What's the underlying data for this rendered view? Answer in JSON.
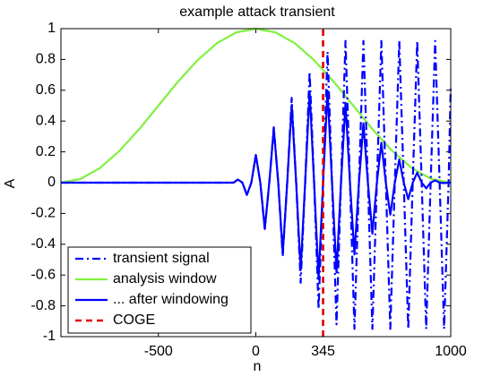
{
  "chart_data": {
    "type": "line",
    "title": "example attack transient",
    "x_label": "n",
    "y_label": "A",
    "xlim": [
      -1000,
      1000
    ],
    "ylim": [
      -1,
      1
    ],
    "xticks": [
      -500,
      0,
      345,
      1000
    ],
    "yticks": [
      -1,
      -0.8,
      -0.6,
      -0.4,
      -0.2,
      0,
      0.2,
      0.4,
      0.6,
      0.8,
      1
    ],
    "legend": "lower left",
    "series": [
      {
        "name": "transient signal",
        "color": "#0000ff",
        "linestyle": "dashdot",
        "x": [
          -1000,
          -115,
          -92,
          -69,
          -46,
          -23,
          0,
          23,
          46,
          69,
          92,
          115,
          138,
          161,
          184,
          207,
          230,
          253,
          276,
          299,
          322,
          345,
          368,
          391,
          414,
          437,
          460,
          483,
          506,
          529,
          552,
          575,
          598,
          621,
          644,
          667,
          690,
          713,
          736,
          759,
          782,
          805,
          828,
          851,
          874,
          897,
          920,
          943,
          966,
          989,
          1000
        ],
        "values": [
          0,
          0,
          0.02,
          0,
          -0.08,
          0,
          0.18,
          0,
          -0.3,
          0,
          0.36,
          0,
          -0.48,
          0,
          0.55,
          0,
          -0.65,
          0,
          0.72,
          0,
          -0.82,
          0,
          0.85,
          0,
          -0.92,
          0,
          0.92,
          0,
          -0.95,
          0,
          0.92,
          0,
          -0.95,
          0,
          0.92,
          0,
          -0.95,
          0,
          0.92,
          0,
          -0.95,
          0,
          0.92,
          0,
          -0.95,
          0,
          0.92,
          0,
          -0.95,
          0,
          0.63
        ]
      },
      {
        "name": "analysis window",
        "color": "#80f040",
        "linestyle": "solid",
        "x": [
          -1000,
          -900,
          -800,
          -700,
          -600,
          -500,
          -400,
          -300,
          -200,
          -100,
          0,
          100,
          200,
          300,
          400,
          500,
          600,
          700,
          800,
          900,
          1000
        ],
        "values": [
          0,
          0.024,
          0.095,
          0.206,
          0.345,
          0.5,
          0.655,
          0.794,
          0.905,
          0.976,
          1,
          0.976,
          0.905,
          0.794,
          0.655,
          0.5,
          0.345,
          0.206,
          0.095,
          0.024,
          0
        ]
      },
      {
        "name": "... after windowing",
        "color": "#0000ff",
        "linestyle": "solid",
        "x": [
          -1000,
          -115,
          -92,
          -69,
          -46,
          -23,
          0,
          23,
          46,
          69,
          92,
          115,
          138,
          161,
          184,
          207,
          230,
          253,
          276,
          299,
          322,
          345,
          368,
          391,
          414,
          437,
          460,
          483,
          506,
          529,
          552,
          575,
          598,
          621,
          644,
          667,
          690,
          713,
          736,
          759,
          782,
          805,
          828,
          851,
          874,
          897,
          920,
          943,
          966,
          989,
          1000
        ],
        "values": [
          0,
          0,
          0.02,
          0,
          -0.08,
          0,
          0.18,
          0,
          -0.3,
          0,
          0.352,
          0,
          -0.458,
          0,
          0.505,
          0,
          -0.569,
          0,
          0.593,
          0,
          -0.627,
          0,
          0.597,
          0,
          -0.583,
          0,
          0.518,
          0,
          -0.466,
          0,
          0.385,
          0,
          -0.331,
          0,
          0.259,
          0,
          -0.208,
          0,
          0.15,
          0,
          -0.107,
          0,
          0.065,
          0,
          -0.037,
          0,
          0.015,
          0,
          -0.003,
          0,
          0
        ]
      },
      {
        "name": "COGE",
        "color": "#e00000",
        "linestyle": "dashed",
        "x": [
          345,
          345
        ],
        "values": [
          -1,
          1
        ]
      }
    ]
  }
}
